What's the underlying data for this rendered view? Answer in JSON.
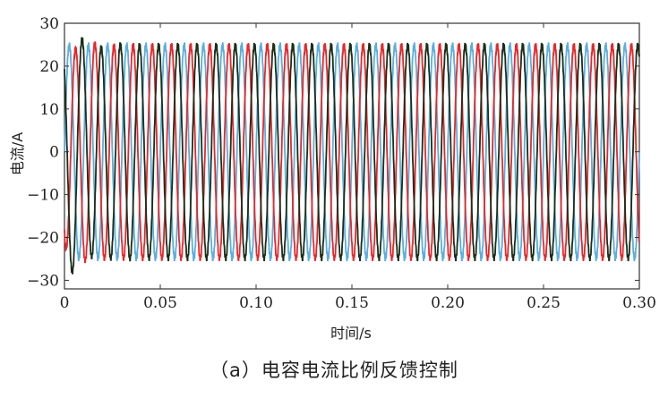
{
  "caption": "（a）电容电流比例反馈控制",
  "chart_data": {
    "type": "line",
    "title": "",
    "xlabel": "时间/s",
    "ylabel": "电流/A",
    "xlim": [
      0,
      0.3
    ],
    "ylim": [
      -32,
      30
    ],
    "x_ticks": [
      0,
      0.05,
      0.1,
      0.15,
      0.2,
      0.25,
      0.3
    ],
    "x_tick_labels": [
      "0",
      "0.05",
      "0.10",
      "0.15",
      "0.20",
      "0.25",
      "0.30"
    ],
    "y_ticks": [
      -30,
      -20,
      -10,
      0,
      10,
      20,
      30
    ],
    "y_tick_labels": [
      "−30",
      "−20",
      "−10",
      "0",
      "10",
      "20",
      "30"
    ],
    "grid": false,
    "frequency_hz": 100,
    "steady_amplitude_A": 25,
    "peak_startup_A": 27,
    "min_startup_A": -29,
    "series": [
      {
        "phase_deg": 0,
        "color": "#5aaede"
      },
      {
        "phase_deg": -120,
        "color": "#e8262b"
      },
      {
        "phase_deg": 120,
        "color": "#1a2e1a"
      }
    ]
  }
}
